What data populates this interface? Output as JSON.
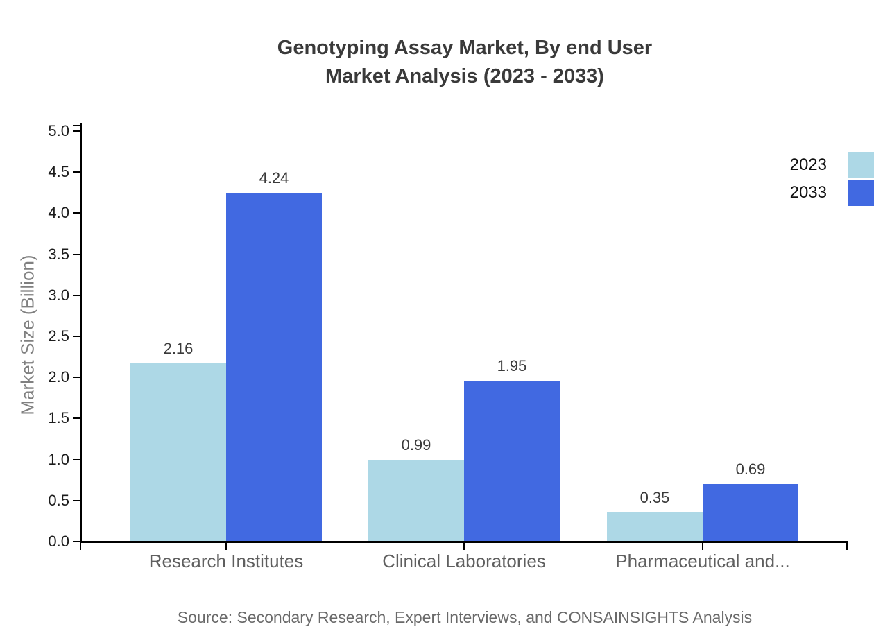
{
  "title": {
    "line1": "Genotyping Assay Market, By end User",
    "line2": "Market Analysis (2023 - 2033)"
  },
  "source_note": "Source: Secondary Research, Expert Interviews, and CONSAINSIGHTS Analysis",
  "chart_data": {
    "type": "bar",
    "title": "Genotyping Assay Market, By end User Market Analysis (2023 - 2033)",
    "categories": [
      "Research Institutes",
      "Clinical Laboratories",
      "Pharmaceutical and..."
    ],
    "series": [
      {
        "name": "2023",
        "color": "#ADD8E6",
        "values": [
          2.16,
          0.99,
          0.35
        ]
      },
      {
        "name": "2033",
        "color": "#4169E1",
        "values": [
          4.24,
          1.95,
          0.69
        ]
      }
    ],
    "value_labels": [
      [
        "2.16",
        "0.99",
        "0.35"
      ],
      [
        "4.24",
        "1.95",
        "0.69"
      ]
    ],
    "xlabel": "",
    "ylabel": "Market Size (Billion)",
    "ylim": [
      0,
      5
    ],
    "ytick_step": 0.5,
    "ytick_labels": [
      "0.0",
      "0.5",
      "1.0",
      "1.5",
      "2.0",
      "2.5",
      "3.0",
      "3.5",
      "4.0",
      "4.5",
      "5.0"
    ],
    "grid": false,
    "legend_position": "upper-right",
    "axis_color": "#000000",
    "bar_value_label_color": "#3a3a3a"
  }
}
